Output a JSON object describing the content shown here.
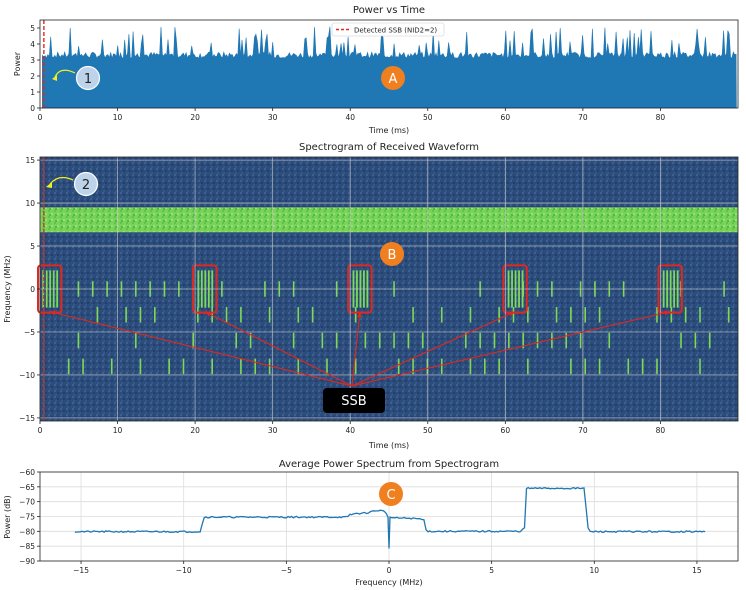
{
  "colors": {
    "signal": "#1f77b4",
    "spec_bg": "#2c4a7a",
    "spec_band": "#7ed957",
    "ssb_marker": "#e0281e",
    "badge_orange": "#f07f20",
    "badge_blue": "#bcd3ea",
    "callout_bg": "#000000"
  },
  "chart_data": [
    {
      "type": "area",
      "title": "Power vs Time",
      "xlabel": "Time (ms)",
      "ylabel": "Power",
      "xlim": [
        0,
        90
      ],
      "ylim": [
        0,
        5.5
      ],
      "xticks": [
        0,
        10,
        20,
        30,
        40,
        50,
        60,
        70,
        80
      ],
      "yticks": [
        0,
        1,
        2,
        3,
        4,
        5
      ],
      "legend": {
        "label": "Detected SSB (NID2=2)",
        "placement": "top-center"
      },
      "ssb_marker_x": 0.5,
      "baseline_power": 3.3,
      "peak_power_range": [
        3.8,
        5.1
      ],
      "grid": false,
      "badges": {
        "A": "A",
        "one": "1"
      }
    },
    {
      "type": "heatmap",
      "title": "Spectrogram of Received Waveform",
      "xlabel": "Time (ms)",
      "ylabel": "Frequency (MHz)",
      "xlim": [
        0,
        90
      ],
      "ylim": [
        -15.36,
        15.36
      ],
      "xticks": [
        0,
        10,
        20,
        30,
        40,
        50,
        60,
        70,
        80
      ],
      "yticks": [
        -15,
        -10,
        -5,
        0,
        5,
        10,
        15
      ],
      "grid": true,
      "strong_band_mhz": [
        6.6,
        9.5
      ],
      "ssb_bursts_ms": [
        0,
        20,
        40,
        60,
        80
      ],
      "ssb_burst_freq_mhz": [
        -2.4,
        2.4
      ],
      "ssb_burst_width_ms": 2.5,
      "burst_freq_rows_mhz": [
        0,
        -3,
        -6,
        -9
      ],
      "annotation": "SSB",
      "badges": {
        "B": "B",
        "two": "2"
      }
    },
    {
      "type": "line",
      "title": "Average Power Spectrum from Spectrogram",
      "xlabel": "Frequency (MHz)",
      "ylabel": "Power (dB)",
      "xlim": [
        -17,
        17
      ],
      "ylim": [
        -90,
        -60
      ],
      "xticks": [
        -15,
        -10,
        -5,
        0,
        5,
        10,
        15
      ],
      "yticks": [
        -90,
        -85,
        -80,
        -75,
        -70,
        -65,
        -60
      ],
      "grid": true,
      "x": [
        -15.3,
        -9.2,
        -9.0,
        -2.0,
        -1.9,
        -1.6,
        -1.1,
        -0.9,
        -0.5,
        -0.2,
        -0.05,
        0.0,
        0.05,
        0.3,
        1.0,
        1.5,
        1.7,
        1.8,
        1.9,
        6.4,
        6.6,
        6.7,
        9.5,
        9.7,
        9.8,
        15.4
      ],
      "y": [
        -80.1,
        -80.1,
        -75.2,
        -75.2,
        -74.4,
        -74.0,
        -73.8,
        -73.4,
        -72.9,
        -73.3,
        -75.0,
        -86.0,
        -75.2,
        -75.5,
        -75.6,
        -75.8,
        -76.2,
        -79.2,
        -80.0,
        -80.0,
        -79.0,
        -65.5,
        -65.5,
        -79.0,
        -80.1,
        -80.1
      ],
      "badges": {
        "C": "C"
      }
    }
  ]
}
